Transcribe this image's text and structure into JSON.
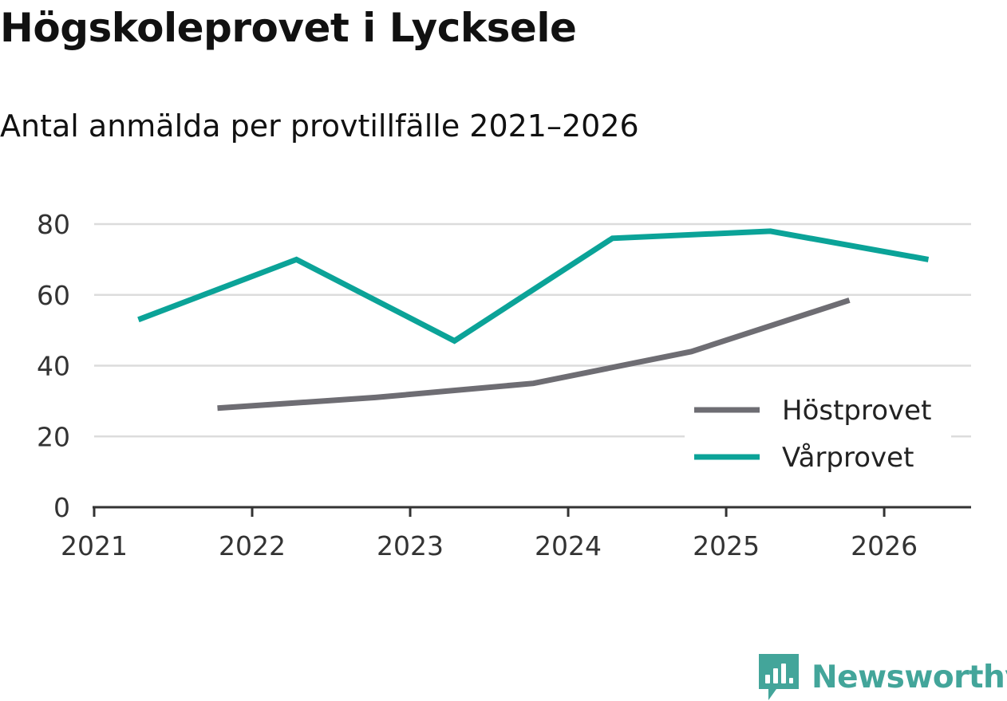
{
  "title": "Högskoleprovet i Lycksele",
  "subtitle": "Antal anmälda per provtillfälle 2021–2026",
  "brand": {
    "name": "Newsworthy",
    "color": "#43a59a"
  },
  "chart_data": {
    "type": "line",
    "title": "Högskoleprovet i Lycksele",
    "subtitle": "Antal anmälda per provtillfälle 2021–2026",
    "xlabel": "",
    "ylabel": "",
    "xlim": [
      2021,
      2026.55
    ],
    "ylim": [
      0,
      80
    ],
    "yticks": [
      0,
      20,
      40,
      60,
      80
    ],
    "xticks": [
      2021,
      2022,
      2023,
      2024,
      2025,
      2026
    ],
    "ytick_labels": [
      "0",
      "20",
      "40",
      "60",
      "80"
    ],
    "xtick_labels": [
      "2021",
      "2022",
      "2023",
      "2024",
      "2025",
      "2026"
    ],
    "grid": "horizontal",
    "legend_position": "bottom-right",
    "series": [
      {
        "name": "Höstprovet",
        "color": "#6e6d73",
        "x": [
          2021.78,
          2022.78,
          2023.78,
          2024.78,
          2025.78
        ],
        "y": [
          28,
          31,
          35,
          44,
          58.5
        ]
      },
      {
        "name": "Vårprovet",
        "color": "#0ba398",
        "x": [
          2021.28,
          2022.28,
          2023.28,
          2024.28,
          2025.28,
          2026.28
        ],
        "y": [
          53,
          70,
          47,
          76,
          78,
          70
        ]
      }
    ]
  }
}
